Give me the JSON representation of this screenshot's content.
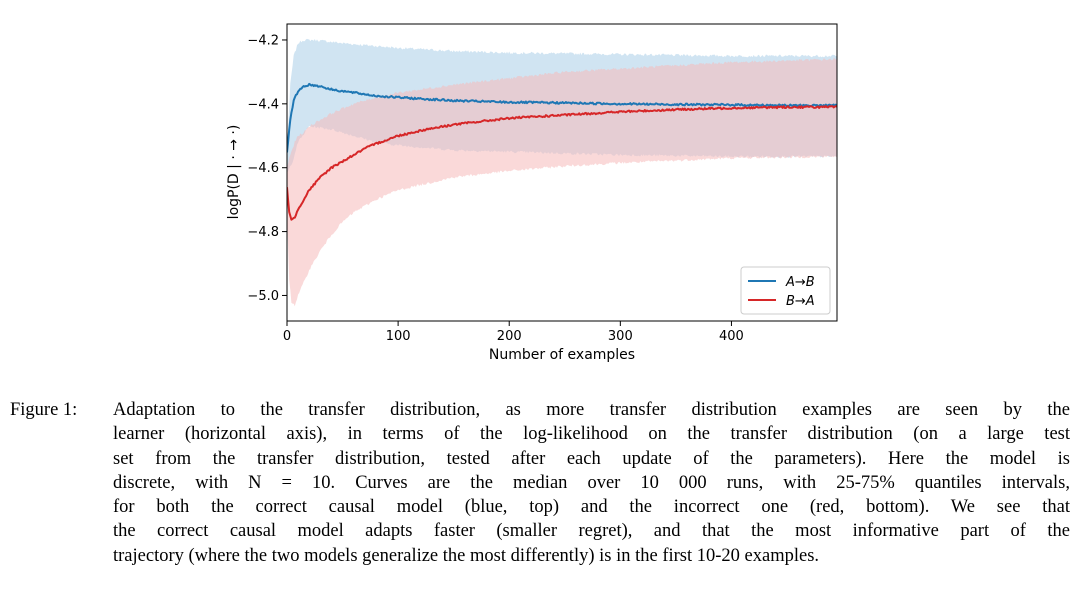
{
  "chart_data": {
    "type": "line",
    "xlabel": "Number of examples",
    "ylabel": "logP(D | · → ·)",
    "xlim": [
      0,
      495
    ],
    "ylim": [
      -5.08,
      -4.15
    ],
    "xticks": [
      0,
      100,
      200,
      300,
      400
    ],
    "yticks": [
      -5.0,
      -4.8,
      -4.6,
      -4.4,
      -4.2
    ],
    "ytick_labels": [
      "−5.0",
      "−4.8",
      "−4.6",
      "−4.4",
      "−4.2"
    ],
    "legend_position": "lower-right",
    "series": [
      {
        "name": "A→B",
        "color": "#1f77b4",
        "band_color": "#aacde8",
        "median": [
          [
            0,
            -4.55
          ],
          [
            3,
            -4.45
          ],
          [
            6,
            -4.39
          ],
          [
            10,
            -4.36
          ],
          [
            15,
            -4.345
          ],
          [
            20,
            -4.34
          ],
          [
            30,
            -4.345
          ],
          [
            40,
            -4.355
          ],
          [
            50,
            -4.36
          ],
          [
            60,
            -4.365
          ],
          [
            70,
            -4.37
          ],
          [
            80,
            -4.375
          ],
          [
            100,
            -4.38
          ],
          [
            125,
            -4.385
          ],
          [
            150,
            -4.39
          ],
          [
            200,
            -4.395
          ],
          [
            250,
            -4.397
          ],
          [
            300,
            -4.4
          ],
          [
            350,
            -4.402
          ],
          [
            400,
            -4.403
          ],
          [
            450,
            -4.405
          ],
          [
            495,
            -4.405
          ]
        ],
        "q_low": [
          [
            0,
            -4.62
          ],
          [
            5,
            -4.58
          ],
          [
            10,
            -4.52
          ],
          [
            20,
            -4.47
          ],
          [
            40,
            -4.48
          ],
          [
            60,
            -4.5
          ],
          [
            80,
            -4.52
          ],
          [
            100,
            -4.53
          ],
          [
            150,
            -4.545
          ],
          [
            200,
            -4.55
          ],
          [
            300,
            -4.56
          ],
          [
            400,
            -4.565
          ],
          [
            495,
            -4.565
          ]
        ],
        "q_high": [
          [
            0,
            -4.55
          ],
          [
            3,
            -4.34
          ],
          [
            6,
            -4.25
          ],
          [
            10,
            -4.21
          ],
          [
            15,
            -4.2
          ],
          [
            25,
            -4.2
          ],
          [
            50,
            -4.21
          ],
          [
            100,
            -4.225
          ],
          [
            150,
            -4.235
          ],
          [
            200,
            -4.24
          ],
          [
            300,
            -4.245
          ],
          [
            400,
            -4.25
          ],
          [
            495,
            -4.25
          ]
        ]
      },
      {
        "name": "B→A",
        "color": "#d62728",
        "band_color": "#f5b9ba",
        "median": [
          [
            0,
            -4.66
          ],
          [
            2,
            -4.74
          ],
          [
            4,
            -4.765
          ],
          [
            7,
            -4.755
          ],
          [
            10,
            -4.73
          ],
          [
            15,
            -4.7
          ],
          [
            20,
            -4.67
          ],
          [
            30,
            -4.63
          ],
          [
            40,
            -4.6
          ],
          [
            50,
            -4.58
          ],
          [
            60,
            -4.56
          ],
          [
            70,
            -4.54
          ],
          [
            80,
            -4.525
          ],
          [
            100,
            -4.5
          ],
          [
            125,
            -4.48
          ],
          [
            150,
            -4.465
          ],
          [
            175,
            -4.455
          ],
          [
            200,
            -4.445
          ],
          [
            250,
            -4.435
          ],
          [
            300,
            -4.425
          ],
          [
            350,
            -4.418
          ],
          [
            400,
            -4.413
          ],
          [
            450,
            -4.41
          ],
          [
            495,
            -4.41
          ]
        ],
        "q_low": [
          [
            0,
            -4.75
          ],
          [
            2,
            -4.95
          ],
          [
            4,
            -5.02
          ],
          [
            7,
            -5.03
          ],
          [
            10,
            -5.0
          ],
          [
            15,
            -4.96
          ],
          [
            20,
            -4.92
          ],
          [
            30,
            -4.86
          ],
          [
            40,
            -4.81
          ],
          [
            50,
            -4.77
          ],
          [
            60,
            -4.74
          ],
          [
            80,
            -4.7
          ],
          [
            100,
            -4.67
          ],
          [
            150,
            -4.63
          ],
          [
            200,
            -4.61
          ],
          [
            250,
            -4.595
          ],
          [
            300,
            -4.585
          ],
          [
            400,
            -4.57
          ],
          [
            495,
            -4.565
          ]
        ],
        "q_high": [
          [
            0,
            -4.6
          ],
          [
            2,
            -4.57
          ],
          [
            4,
            -4.55
          ],
          [
            7,
            -4.52
          ],
          [
            10,
            -4.5
          ],
          [
            15,
            -4.49
          ],
          [
            20,
            -4.47
          ],
          [
            30,
            -4.45
          ],
          [
            40,
            -4.43
          ],
          [
            50,
            -4.415
          ],
          [
            60,
            -4.4
          ],
          [
            80,
            -4.38
          ],
          [
            100,
            -4.365
          ],
          [
            150,
            -4.34
          ],
          [
            200,
            -4.32
          ],
          [
            250,
            -4.3
          ],
          [
            300,
            -4.29
          ],
          [
            350,
            -4.28
          ],
          [
            400,
            -4.27
          ],
          [
            495,
            -4.26
          ]
        ]
      }
    ]
  },
  "caption": {
    "label": "Figure 1:",
    "lines": [
      "Adaptation to the transfer distribution, as more transfer distribution examples are seen by the",
      "learner (horizontal axis), in terms of the log-likelihood on the transfer distribution (on a large test",
      "set from the transfer distribution, tested after each update of the parameters). Here the model is",
      "discrete, with N = 10. Curves are the median over 10 000 runs, with 25-75% quantiles intervals,",
      "for both the correct causal model (blue, top) and the incorrect one (red, bottom). We see that",
      "the correct causal model adapts faster (smaller regret), and that the most informative part of the",
      "trajectory (where the two models generalize the most differently) is in the first 10-20 examples."
    ]
  }
}
